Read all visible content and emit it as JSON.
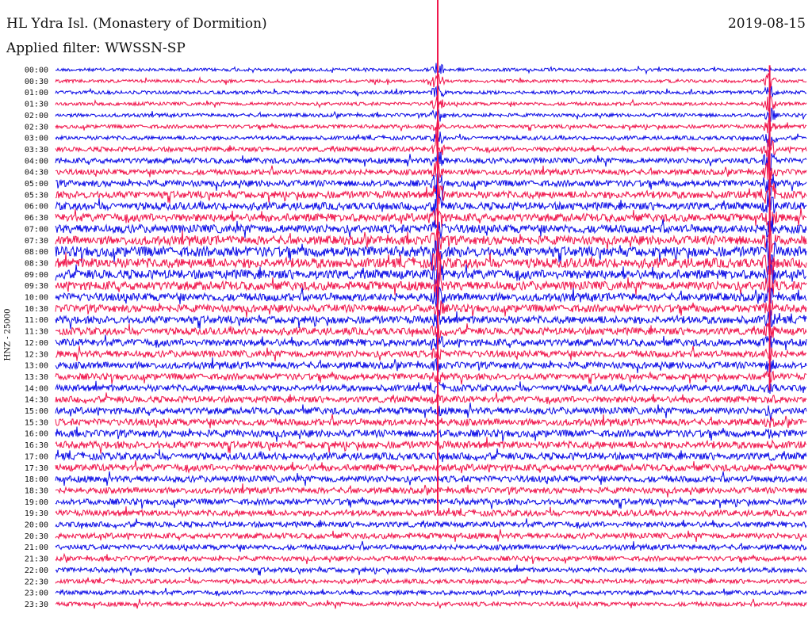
{
  "header": {
    "station": "HL Ydra Isl. (Monastery of Dormition)",
    "date": "2019-08-15",
    "filter": "Applied filter: WWSSN-SP",
    "y_label": "HNZ - 25000"
  },
  "colors": {
    "trace_a": "#0a0ae6",
    "trace_b": "#f0144b",
    "background": "#ffffff"
  },
  "chart_data": {
    "type": "line",
    "title": "HL Ydra Isl. (Monastery of Dormition)",
    "subtitle": "Applied filter: WWSSN-SP",
    "ylabel": "HNZ - 25000",
    "row_labels": [
      "00:00",
      "00:30",
      "01:00",
      "01:30",
      "02:00",
      "02:30",
      "03:00",
      "03:30",
      "04:00",
      "04:30",
      "05:00",
      "05:30",
      "06:00",
      "06:30",
      "07:00",
      "07:30",
      "08:00",
      "08:30",
      "09:00",
      "09:30",
      "10:00",
      "10:30",
      "11:00",
      "11:30",
      "12:00",
      "12:30",
      "13:00",
      "13:30",
      "14:00",
      "14:30",
      "15:00",
      "15:30",
      "16:00",
      "16:30",
      "17:00",
      "17:30",
      "18:00",
      "18:30",
      "19:00",
      "19:30",
      "20:00",
      "20:30",
      "21:00",
      "21:30",
      "22:00",
      "22:30",
      "23:00",
      "23:30"
    ],
    "row_noise_level": [
      0.15,
      0.15,
      0.18,
      0.18,
      0.2,
      0.22,
      0.25,
      0.35,
      0.45,
      0.45,
      0.55,
      0.65,
      0.7,
      0.75,
      0.8,
      0.85,
      1.0,
      0.95,
      0.9,
      0.85,
      0.75,
      0.7,
      0.7,
      0.65,
      0.65,
      0.6,
      0.6,
      0.55,
      0.55,
      0.55,
      0.6,
      0.6,
      0.65,
      0.65,
      0.65,
      0.6,
      0.55,
      0.5,
      0.5,
      0.5,
      0.45,
      0.45,
      0.4,
      0.35,
      0.35,
      0.3,
      0.3,
      0.3
    ],
    "events": [
      {
        "start_row": 0,
        "time_fraction": 0.509,
        "description": "large earthquake, trace clipped"
      },
      {
        "start_row": 1,
        "time_fraction": 0.951,
        "description": "earthquake, trace clipped"
      }
    ],
    "grid": false
  }
}
